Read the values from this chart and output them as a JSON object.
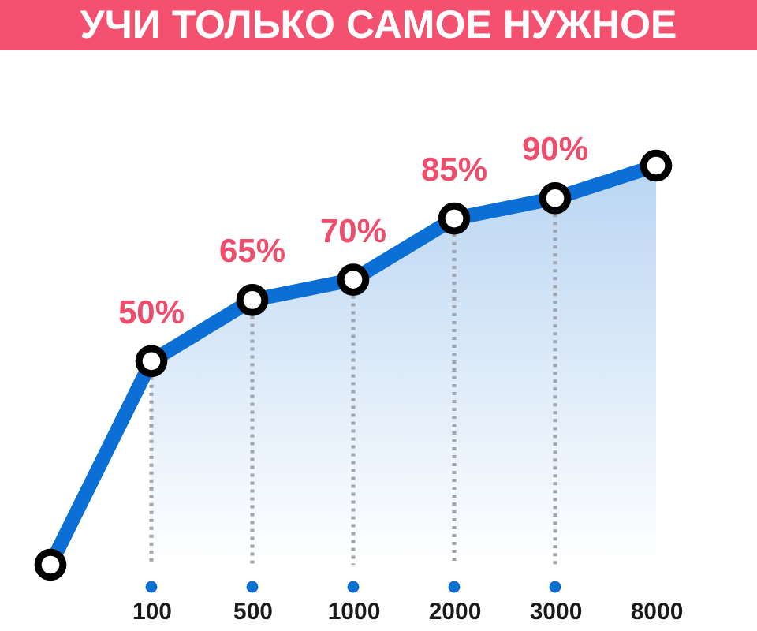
{
  "chart_data": {
    "type": "line",
    "title": "УЧИ ТОЛЬКО САМОЕ НУЖНОЕ",
    "categories": [
      null,
      "100",
      "500",
      "1000",
      "2000",
      "3000",
      "8000"
    ],
    "series": [
      {
        "color": "#0b6fd6",
        "marker": "circle",
        "values": [
          0,
          50,
          65,
          70,
          85,
          90,
          98
        ],
        "value_labels": [
          null,
          "50%",
          "65%",
          "70%",
          "85%",
          "90%",
          null
        ]
      },
      {
        "type": "area",
        "color": "#b9d5f2",
        "values": [
          null,
          50,
          65,
          70,
          85,
          90,
          98
        ]
      }
    ],
    "grid": "x",
    "tick_labels": "x",
    "line_style": "solid"
  }
}
